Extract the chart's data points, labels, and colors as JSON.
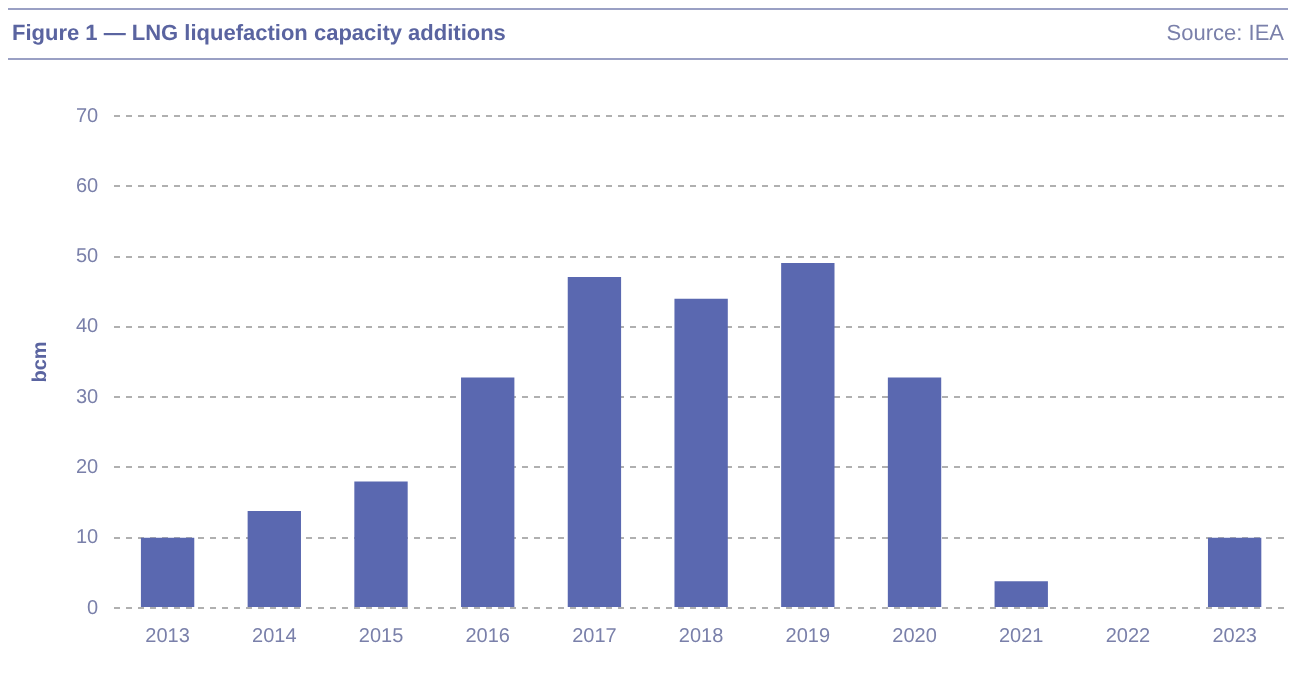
{
  "chart_data": {
    "type": "bar",
    "title": "Figure 1 — LNG liquefaction capacity additions",
    "annotations": [
      "Source: IEA"
    ],
    "ylabel": "bcm",
    "categories": [
      "2013",
      "2014",
      "2015",
      "2016",
      "2017",
      "2018",
      "2019",
      "2020",
      "2021",
      "2022",
      "2023"
    ],
    "values": [
      10,
      13.8,
      18,
      32.8,
      47.1,
      44,
      49.1,
      32.8,
      3.8,
      0,
      10
    ],
    "color": "#5a68b0",
    "ylim": [
      0,
      70
    ],
    "yticks": [
      0,
      10,
      20,
      30,
      40,
      50,
      60,
      70
    ],
    "grid": "y",
    "legend": false
  }
}
